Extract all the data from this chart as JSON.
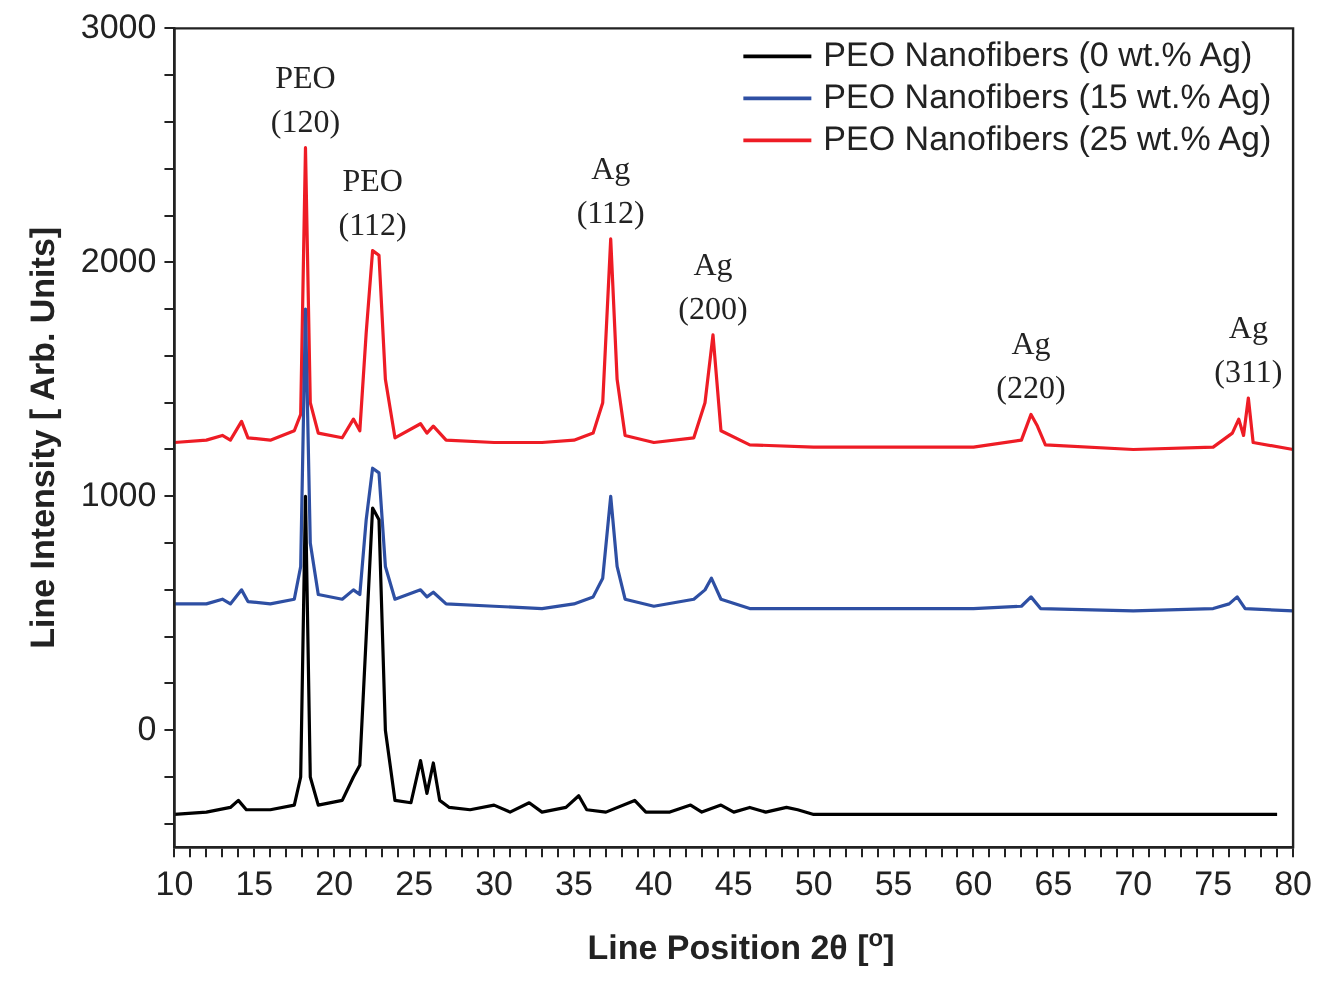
{
  "chart_data": {
    "type": "line",
    "xlabel": "Line Position 2θ [$^{o}$]",
    "ylabel": "Line Intensity [ Arb. Units]",
    "xlim": [
      10,
      80
    ],
    "ylim": [
      -500,
      3000
    ],
    "xticks": [
      10,
      {
        "value": 11,
        "label": null
      },
      {
        "value": 12,
        "label": null
      },
      {
        "value": 13,
        "label": null
      },
      {
        "value": 14,
        "label": null
      },
      15,
      {
        "value": 16,
        "label": null
      },
      {
        "value": 17,
        "label": null
      },
      {
        "value": 18,
        "label": null
      },
      {
        "value": 19,
        "label": null
      },
      20,
      {
        "value": 21,
        "label": null
      },
      {
        "value": 22,
        "label": null
      },
      {
        "value": 23,
        "label": null
      },
      {
        "value": 24,
        "label": null
      },
      25,
      {
        "value": 26,
        "label": null
      },
      {
        "value": 27,
        "label": null
      },
      {
        "value": 28,
        "label": null
      },
      {
        "value": 29,
        "label": null
      },
      30,
      {
        "value": 31,
        "label": null
      },
      {
        "value": 32,
        "label": null
      },
      {
        "value": 33,
        "label": null
      },
      {
        "value": 34,
        "label": null
      },
      35,
      {
        "value": 36,
        "label": null
      },
      {
        "value": 37,
        "label": null
      },
      {
        "value": 38,
        "label": null
      },
      {
        "value": 39,
        "label": null
      },
      40,
      {
        "value": 41,
        "label": null
      },
      {
        "value": 42,
        "label": null
      },
      {
        "value": 43,
        "label": null
      },
      {
        "value": 44,
        "label": null
      },
      45,
      {
        "value": 46,
        "label": null
      },
      {
        "value": 47,
        "label": null
      },
      {
        "value": 48,
        "label": null
      },
      {
        "value": 49,
        "label": null
      },
      50,
      {
        "value": 51,
        "label": null
      },
      {
        "value": 52,
        "label": null
      },
      {
        "value": 53,
        "label": null
      },
      {
        "value": 54,
        "label": null
      },
      55,
      {
        "value": 56,
        "label": null
      },
      {
        "value": 57,
        "label": null
      },
      {
        "value": 58,
        "label": null
      },
      {
        "value": 59,
        "label": null
      },
      60,
      {
        "value": 61,
        "label": null
      },
      {
        "value": 62,
        "label": null
      },
      {
        "value": 63,
        "label": null
      },
      {
        "value": 64,
        "label": null
      },
      65,
      {
        "value": 66,
        "label": null
      },
      {
        "value": 67,
        "label": null
      },
      {
        "value": 68,
        "label": null
      },
      {
        "value": 69,
        "label": null
      },
      70,
      {
        "value": 71,
        "label": null
      },
      {
        "value": 72,
        "label": null
      },
      {
        "value": 73,
        "label": null
      },
      {
        "value": 74,
        "label": null
      },
      75,
      {
        "value": 76,
        "label": null
      },
      {
        "value": 77,
        "label": null
      },
      {
        "value": 78,
        "label": null
      },
      {
        "value": 79,
        "label": null
      },
      80
    ],
    "yticks": [
      {
        "value": -400,
        "label": null
      },
      {
        "value": -200,
        "label": null
      },
      0,
      {
        "value": 200,
        "label": null
      },
      {
        "value": 400,
        "label": null
      },
      {
        "value": 600,
        "label": null
      },
      {
        "value": 800,
        "label": null
      },
      1000,
      {
        "value": 1200,
        "label": null
      },
      {
        "value": 1400,
        "label": null
      },
      {
        "value": 1600,
        "label": null
      },
      {
        "value": 1800,
        "label": null
      },
      2000,
      {
        "value": 2200,
        "label": null
      },
      {
        "value": 2400,
        "label": null
      },
      {
        "value": 2600,
        "label": null
      },
      {
        "value": 2800,
        "label": null
      },
      3000
    ],
    "grid": false,
    "legend": "top right",
    "marker": "none",
    "line_style": "solid",
    "series": [
      {
        "name": "PEO Nanofibers (0 wt.% Ag)",
        "color": "#000000",
        "x": [
          10,
          12,
          13.5,
          14,
          14.5,
          16,
          17.5,
          17.9,
          18.2,
          18.5,
          19,
          20.5,
          21.2,
          21.6,
          22,
          22.4,
          22.8,
          23.2,
          23.8,
          24.8,
          25.4,
          25.8,
          26.2,
          26.6,
          27.2,
          28.5,
          30,
          31,
          32.2,
          33,
          34.5,
          35.3,
          35.8,
          37,
          38.8,
          39.5,
          41,
          42.3,
          43,
          44.2,
          45,
          46,
          47,
          48.3,
          49,
          50,
          55,
          60,
          65,
          70,
          75,
          79
        ],
        "values": [
          -360,
          -350,
          -330,
          -300,
          -340,
          -340,
          -320,
          -200,
          1000,
          -200,
          -320,
          -300,
          -200,
          -150,
          400,
          950,
          900,
          0,
          -300,
          -310,
          -130,
          -270,
          -140,
          -300,
          -330,
          -340,
          -320,
          -350,
          -310,
          -350,
          -330,
          -280,
          -340,
          -350,
          -300,
          -350,
          -350,
          -320,
          -350,
          -320,
          -350,
          -330,
          -350,
          -330,
          -340,
          -360,
          -360,
          -360,
          -360,
          -360,
          -360,
          -360
        ]
      },
      {
        "name": "PEO Nanofibers (15 wt.% Ag)",
        "color": "#2e4fa3",
        "x": [
          10,
          12,
          13,
          13.5,
          14.2,
          14.6,
          16,
          17.5,
          17.9,
          18.2,
          18.5,
          19,
          20.5,
          21.2,
          21.6,
          22,
          22.4,
          22.8,
          23.2,
          23.8,
          25.4,
          25.8,
          26.2,
          27,
          30,
          33,
          35,
          36.2,
          36.8,
          37.3,
          37.7,
          38.2,
          40,
          42.5,
          43.2,
          43.6,
          44.2,
          46,
          50,
          55,
          60,
          63,
          63.6,
          64.2,
          70,
          75,
          76,
          76.5,
          77,
          80
        ],
        "values": [
          540,
          540,
          560,
          540,
          600,
          550,
          540,
          560,
          700,
          1800,
          800,
          580,
          560,
          600,
          580,
          900,
          1120,
          1100,
          700,
          560,
          600,
          570,
          590,
          540,
          530,
          520,
          540,
          570,
          650,
          1000,
          700,
          560,
          530,
          560,
          600,
          650,
          560,
          520,
          520,
          520,
          520,
          530,
          570,
          520,
          510,
          520,
          540,
          570,
          520,
          510
        ]
      },
      {
        "name": "PEO Nanofibers (25 wt.% Ag)",
        "color": "#ee1c25",
        "x": [
          10,
          12,
          13,
          13.5,
          14.2,
          14.6,
          16,
          17.5,
          17.9,
          18.2,
          18.5,
          19,
          20.5,
          21.2,
          21.6,
          22,
          22.4,
          22.8,
          23.2,
          23.8,
          25.4,
          25.8,
          26.2,
          27,
          30,
          33,
          35,
          36.2,
          36.8,
          37.3,
          37.7,
          38.2,
          40,
          42.5,
          43.2,
          43.7,
          44.2,
          46,
          50,
          55,
          60,
          63,
          63.6,
          64,
          64.5,
          70,
          75,
          76.2,
          76.6,
          76.9,
          77.2,
          77.5,
          80
        ],
        "values": [
          1230,
          1240,
          1260,
          1240,
          1320,
          1250,
          1240,
          1280,
          1350,
          2490,
          1400,
          1270,
          1250,
          1330,
          1280,
          1700,
          2050,
          2030,
          1500,
          1250,
          1310,
          1270,
          1300,
          1240,
          1230,
          1230,
          1240,
          1270,
          1400,
          2100,
          1500,
          1260,
          1230,
          1250,
          1400,
          1690,
          1280,
          1220,
          1210,
          1210,
          1210,
          1240,
          1350,
          1300,
          1220,
          1200,
          1210,
          1270,
          1330,
          1260,
          1420,
          1230,
          1200
        ]
      }
    ],
    "annotations": [
      {
        "text": "PEO\n(120)",
        "x": 18.2,
        "y": 2490
      },
      {
        "text": "PEO\n(112)",
        "x": 22.4,
        "y": 2050
      },
      {
        "text": "Ag\n(112)",
        "x": 37.3,
        "y": 2100
      },
      {
        "text": "Ag\n(200)",
        "x": 43.7,
        "y": 1690
      },
      {
        "text": "Ag\n(220)",
        "x": 63.6,
        "y": 1350
      },
      {
        "text": "Ag\n(311)",
        "x": 77.2,
        "y": 1420
      }
    ]
  }
}
